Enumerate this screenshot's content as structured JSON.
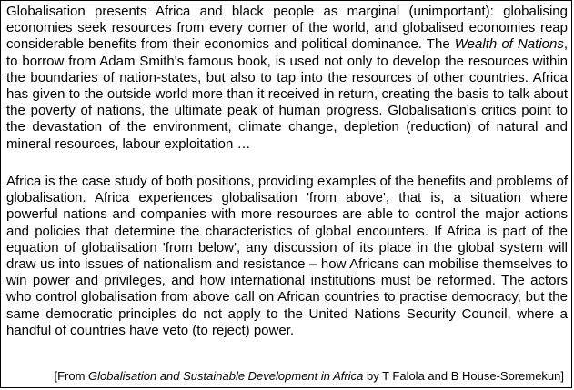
{
  "passage": {
    "paragraph1": {
      "before_italic": "Globalisation presents Africa and black people as marginal (unimportant): globalising economies seek resources from every corner of the world, and globalised economies reap considerable benefits from their economics and political dominance. The ",
      "italic": "Wealth of Nations",
      "after_italic": ", to borrow from Adam Smith's famous book, is used not only to develop the resources within the boundaries of nation-states, but also to tap into the resources of other countries. Africa has given to the outside world more than it received in return, creating the basis to talk about the poverty of nations, the ultimate peak of human progress. Globalisation's critics point to the devastation of the environment, climate change, depletion (reduction) of natural and mineral resources, labour exploitation …"
    },
    "paragraph2": "Africa is the case study of both positions, providing examples of the benefits and problems of globalisation. Africa experiences globalisation 'from above', that is, a situation where powerful nations and companies with more resources are able to control the major actions and policies that determine the characteristics of global encounters. If Africa is part of the equation of globalisation 'from below', any discussion of its place in the global system will draw us into issues of nationalism and resistance – how Africans can mobilise themselves to win power and privileges, and how international institutions must be reformed. The actors who control globalisation from above call on African countries to practise democracy, but the same democratic principles do not apply to the United Nations Security Council, where a handful of countries have veto (to reject) power.",
    "source": {
      "prefix": "[From ",
      "title": "Globalisation and Sustainable Development in Africa",
      "suffix": " by T Falola and B House-Soremekun]"
    }
  }
}
